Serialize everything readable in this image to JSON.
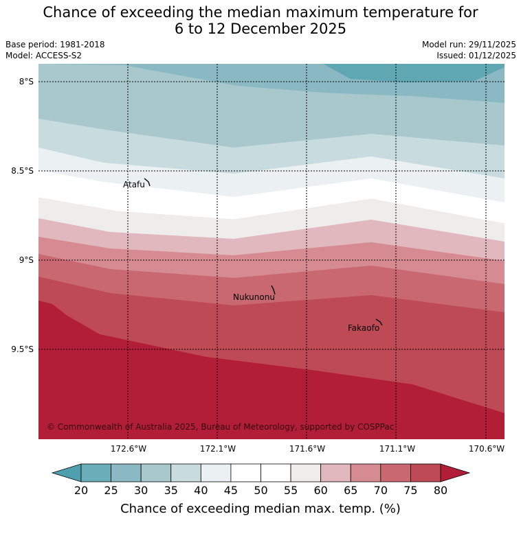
{
  "title": {
    "line1": "Chance of exceeding the median maximum temperature for",
    "line2": "6 to 12 December 2025"
  },
  "meta": {
    "base_period": "Base period: 1981-2018",
    "model": "Model: ACCESS-S2",
    "model_run": "Model run: 29/11/2025",
    "issued": "Issued: 01/12/2025"
  },
  "map": {
    "lat_labels": [
      "8°S",
      "8.5°S",
      "9°S",
      "9.5°S"
    ],
    "lon_labels": [
      "172.6°W",
      "172.1°W",
      "171.6°W",
      "171.1°W",
      "170.6°W"
    ],
    "places": [
      "Atafu",
      "Nukunonu",
      "Fakaofo"
    ],
    "copyright": "© Commonwealth of Australia 2025, Bureau of Meteorology, supported by COSPPac"
  },
  "colorbar": {
    "ticks": [
      "20",
      "25",
      "30",
      "35",
      "40",
      "45",
      "50",
      "55",
      "60",
      "65",
      "70",
      "75",
      "80"
    ],
    "colors": [
      "#4ea0ae",
      "#6aaeb9",
      "#8ab9c3",
      "#a8c8cc",
      "#c8dbdf",
      "#ebf1f3",
      "#ffffff",
      "#ffffff",
      "#efedeb",
      "#e0b8bd",
      "#d68b92",
      "#c96870",
      "#be4a56",
      "#b21d38"
    ],
    "label": "Chance of exceeding median max. temp. (%)"
  }
}
